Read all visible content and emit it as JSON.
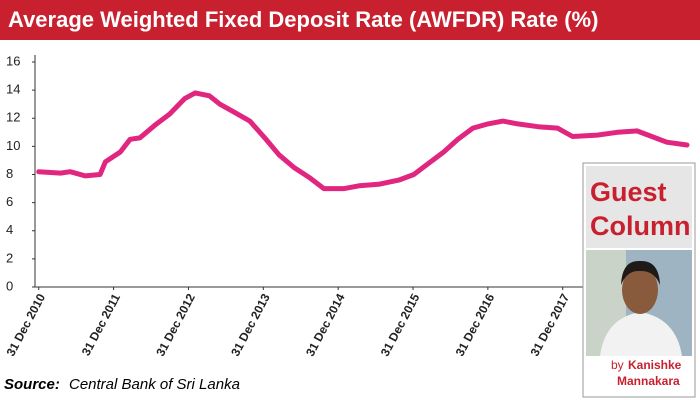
{
  "chart_data": {
    "type": "line",
    "title": "Average Weighted Fixed Deposit Rate (AWFDR) Rate (%)",
    "x": [
      2011.0,
      2011.29,
      2011.42,
      2011.62,
      2011.82,
      2011.89,
      2012.09,
      2012.22,
      2012.35,
      2012.55,
      2012.75,
      2012.95,
      2013.09,
      2013.28,
      2013.42,
      2013.62,
      2013.82,
      2014.02,
      2014.21,
      2014.41,
      2014.61,
      2014.81,
      2015.08,
      2015.28,
      2015.54,
      2015.81,
      2016.01,
      2016.21,
      2016.41,
      2016.6,
      2016.8,
      2017.0,
      2017.2,
      2017.4,
      2017.67,
      2017.93,
      2018.13,
      2018.46,
      2018.73,
      2018.99,
      2019.19,
      2019.39,
      2019.66
    ],
    "values": [
      8.2,
      8.1,
      8.2,
      7.9,
      8.0,
      8.9,
      9.6,
      10.5,
      10.6,
      11.5,
      12.3,
      13.4,
      13.8,
      13.6,
      13.0,
      12.4,
      11.8,
      10.6,
      9.4,
      8.5,
      7.8,
      7.0,
      7.0,
      7.2,
      7.3,
      7.6,
      8.0,
      8.8,
      9.6,
      10.5,
      11.3,
      11.6,
      11.8,
      11.6,
      11.4,
      11.3,
      10.7,
      10.8,
      11.0,
      11.1,
      10.7,
      10.3,
      10.1
    ],
    "color": "#e0267f",
    "xlim": [
      2010.95,
      2019.7
    ],
    "xticks": [
      {
        "value": 2011,
        "label": "31 Dec 2010"
      },
      {
        "value": 2012,
        "label": "31 Dec 2011"
      },
      {
        "value": 2013,
        "label": "31 Dec 2012"
      },
      {
        "value": 2014,
        "label": "31 Dec 2013"
      },
      {
        "value": 2015,
        "label": "31 Dec 2014"
      },
      {
        "value": 2016,
        "label": "31 Dec 2015"
      },
      {
        "value": 2017,
        "label": "31 Dec 2016"
      },
      {
        "value": 2018,
        "label": "31 Dec 2017"
      }
    ],
    "ylim": [
      0,
      16
    ],
    "yticks": [
      0,
      2,
      4,
      6,
      8,
      10,
      12,
      14,
      16
    ],
    "grid": false,
    "source_label": "Source:",
    "source": "Central Bank of Sri Lanka"
  },
  "guest_column": {
    "heading": [
      "Guest",
      "Column"
    ],
    "byline": "by",
    "author": [
      "Kanishke",
      "Mannakara"
    ]
  }
}
